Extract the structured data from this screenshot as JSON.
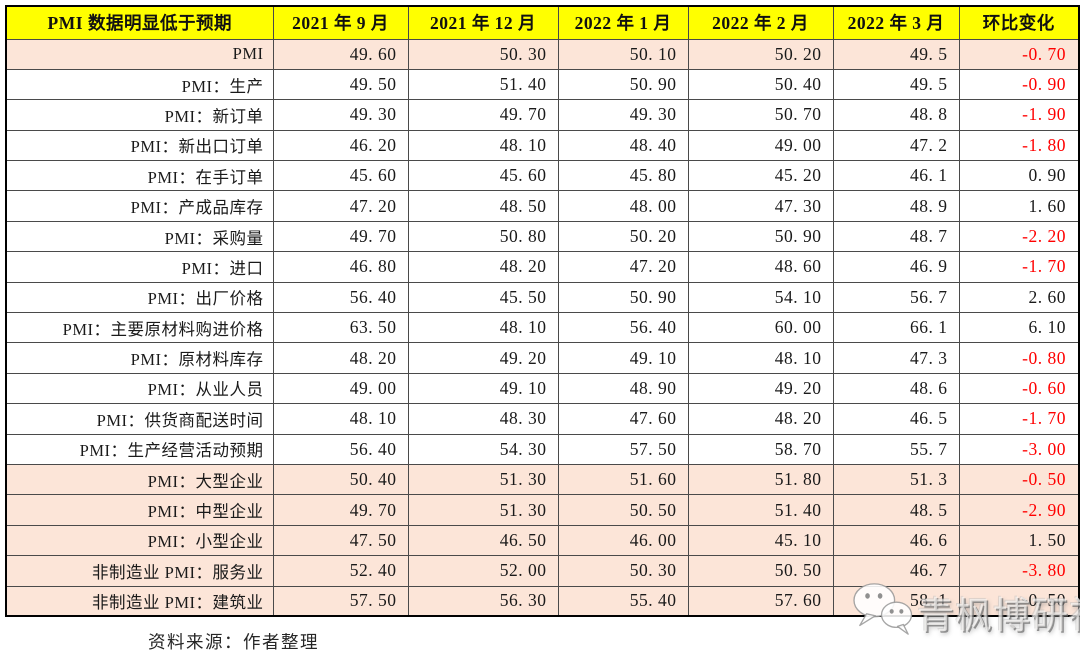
{
  "chart_data": {
    "type": "table",
    "corner_header": "PMI 数据明显低于预期",
    "columns": [
      "2021 年 9 月",
      "2021 年 12 月",
      "2022 年 1 月",
      "2022 年 2 月",
      "2022 年 3 月",
      "环比变化"
    ],
    "rows": [
      {
        "label": "PMI",
        "values": [
          "49.60",
          "50.30",
          "50.10",
          "50.20",
          "49.5"
        ],
        "change": "-0.70",
        "highlighted": true
      },
      {
        "label": "PMI：生产",
        "values": [
          "49.50",
          "51.40",
          "50.90",
          "50.40",
          "49.5"
        ],
        "change": "-0.90",
        "highlighted": false
      },
      {
        "label": "PMI：新订单",
        "values": [
          "49.30",
          "49.70",
          "49.30",
          "50.70",
          "48.8"
        ],
        "change": "-1.90",
        "highlighted": false
      },
      {
        "label": "PMI：新出口订单",
        "values": [
          "46.20",
          "48.10",
          "48.40",
          "49.00",
          "47.2"
        ],
        "change": "-1.80",
        "highlighted": false
      },
      {
        "label": "PMI：在手订单",
        "values": [
          "45.60",
          "45.60",
          "45.80",
          "45.20",
          "46.1"
        ],
        "change": "0.90",
        "highlighted": false
      },
      {
        "label": "PMI：产成品库存",
        "values": [
          "47.20",
          "48.50",
          "48.00",
          "47.30",
          "48.9"
        ],
        "change": "1.60",
        "highlighted": false
      },
      {
        "label": "PMI：采购量",
        "values": [
          "49.70",
          "50.80",
          "50.20",
          "50.90",
          "48.7"
        ],
        "change": "-2.20",
        "highlighted": false
      },
      {
        "label": "PMI：进口",
        "values": [
          "46.80",
          "48.20",
          "47.20",
          "48.60",
          "46.9"
        ],
        "change": "-1.70",
        "highlighted": false
      },
      {
        "label": "PMI：出厂价格",
        "values": [
          "56.40",
          "45.50",
          "50.90",
          "54.10",
          "56.7"
        ],
        "change": "2.60",
        "highlighted": false
      },
      {
        "label": "PMI：主要原材料购进价格",
        "values": [
          "63.50",
          "48.10",
          "56.40",
          "60.00",
          "66.1"
        ],
        "change": "6.10",
        "highlighted": false
      },
      {
        "label": "PMI：原材料库存",
        "values": [
          "48.20",
          "49.20",
          "49.10",
          "48.10",
          "47.3"
        ],
        "change": "-0.80",
        "highlighted": false
      },
      {
        "label": "PMI：从业人员",
        "values": [
          "49.00",
          "49.10",
          "48.90",
          "49.20",
          "48.6"
        ],
        "change": "-0.60",
        "highlighted": false
      },
      {
        "label": "PMI：供货商配送时间",
        "values": [
          "48.10",
          "48.30",
          "47.60",
          "48.20",
          "46.5"
        ],
        "change": "-1.70",
        "highlighted": false
      },
      {
        "label": "PMI：生产经营活动预期",
        "values": [
          "56.40",
          "54.30",
          "57.50",
          "58.70",
          "55.7"
        ],
        "change": "-3.00",
        "highlighted": false
      },
      {
        "label": "PMI：大型企业",
        "values": [
          "50.40",
          "51.30",
          "51.60",
          "51.80",
          "51.3"
        ],
        "change": "-0.50",
        "highlighted": true
      },
      {
        "label": "PMI：中型企业",
        "values": [
          "49.70",
          "51.30",
          "50.50",
          "51.40",
          "48.5"
        ],
        "change": "-2.90",
        "highlighted": true
      },
      {
        "label": "PMI：小型企业",
        "values": [
          "47.50",
          "46.50",
          "46.00",
          "45.10",
          "46.6"
        ],
        "change": "1.50",
        "highlighted": true
      },
      {
        "label": "非制造业 PMI：服务业",
        "values": [
          "52.40",
          "52.00",
          "50.30",
          "50.50",
          "46.7"
        ],
        "change": "-3.80",
        "highlighted": true
      },
      {
        "label": "非制造业 PMI：建筑业",
        "values": [
          "57.50",
          "56.30",
          "55.40",
          "57.60",
          "58.1"
        ],
        "change": "0.50",
        "highlighted": true
      }
    ],
    "source_note": "资料来源：作者整理"
  },
  "watermark": {
    "text": "青枫博研社",
    "icon": "wechat-icon"
  },
  "colors": {
    "header_bg": "#FFFF00",
    "highlight_bg": "#FCE5D8",
    "negative": "#FF0000",
    "body_text": "#1a1a1a"
  }
}
